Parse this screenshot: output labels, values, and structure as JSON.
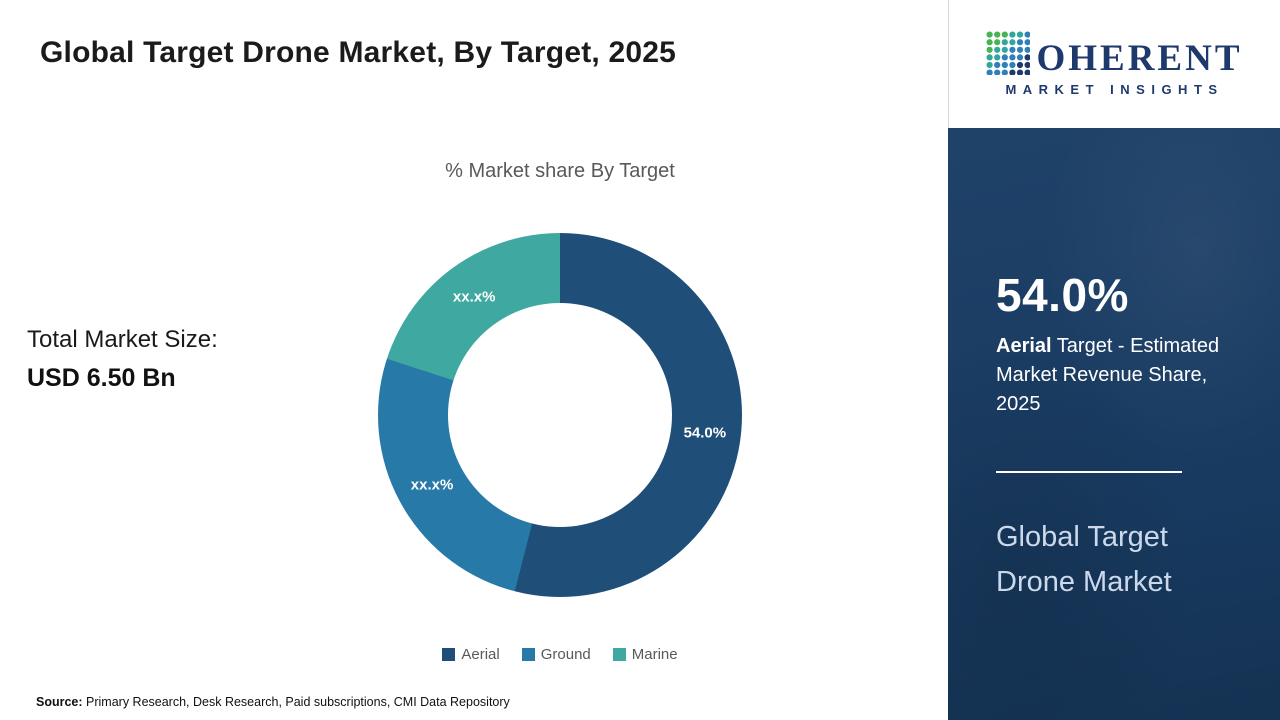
{
  "page": {
    "title": "Global Target Drone Market, By Target, 2025",
    "source_label": "Source:",
    "source_text": " Primary Research, Desk Research, Paid subscriptions, CMI Data Repository"
  },
  "market": {
    "total_label": "Total Market Size:",
    "total_value": "USD 6.50 Bn"
  },
  "chart_data": {
    "type": "pie",
    "donut": true,
    "title": "% Market share By Target",
    "categories": [
      "Aerial",
      "Ground",
      "Marine"
    ],
    "values": [
      54.0,
      26.0,
      20.0
    ],
    "labels": [
      "54.0%",
      "xx.x%",
      "xx.x%"
    ],
    "colors": [
      "#1f4e79",
      "#2779a8",
      "#3fa8a0"
    ],
    "legend_position": "bottom",
    "start_angle_deg": 0
  },
  "sidebar": {
    "logo": {
      "name_rest": "OHERENT",
      "tagline": "MARKET INSIGHTS",
      "dot_colors": [
        "#46b450",
        "#2fa79b",
        "#2f7fb8",
        "#1e3a6d"
      ]
    },
    "stat_value": "54.0%",
    "stat_label_bold": "Aerial",
    "stat_label_rest": " Target - Estimated Market Revenue Share, 2025",
    "panel_title": "Global Target Drone Market",
    "colors": {
      "panel_bg": "#1d3f66",
      "panel_title_text": "#ccd9ec"
    }
  }
}
